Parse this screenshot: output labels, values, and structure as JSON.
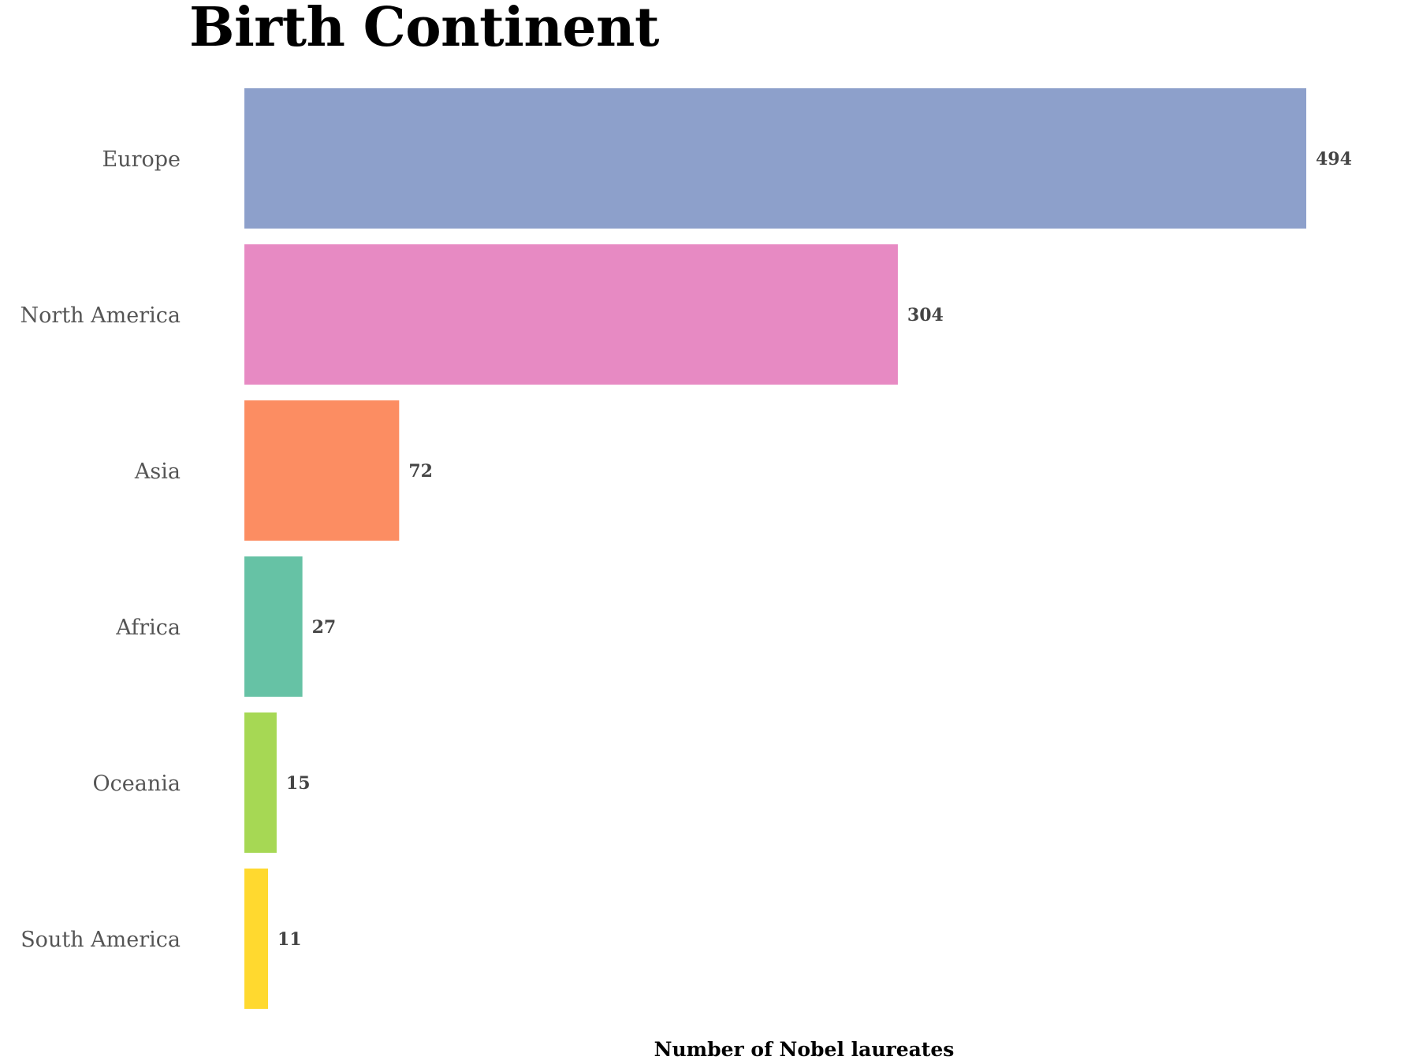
{
  "chart_data": {
    "type": "bar",
    "orientation": "horizontal",
    "title": "Birth Continent",
    "xlabel": "Number of Nobel laureates",
    "ylabel": "",
    "categories": [
      "Europe",
      "North America",
      "Asia",
      "Africa",
      "Oceania",
      "South America"
    ],
    "values": [
      494,
      304,
      72,
      27,
      15,
      11
    ],
    "colors": [
      "#8da0cb",
      "#e78ac3",
      "#fc8d62",
      "#66c2a5",
      "#a6d854",
      "#ffd92f"
    ],
    "xlim": [
      0,
      494
    ],
    "grid": false,
    "legend": "none",
    "value_labels": [
      "494",
      "304",
      "72",
      "27",
      "15",
      "11"
    ]
  }
}
